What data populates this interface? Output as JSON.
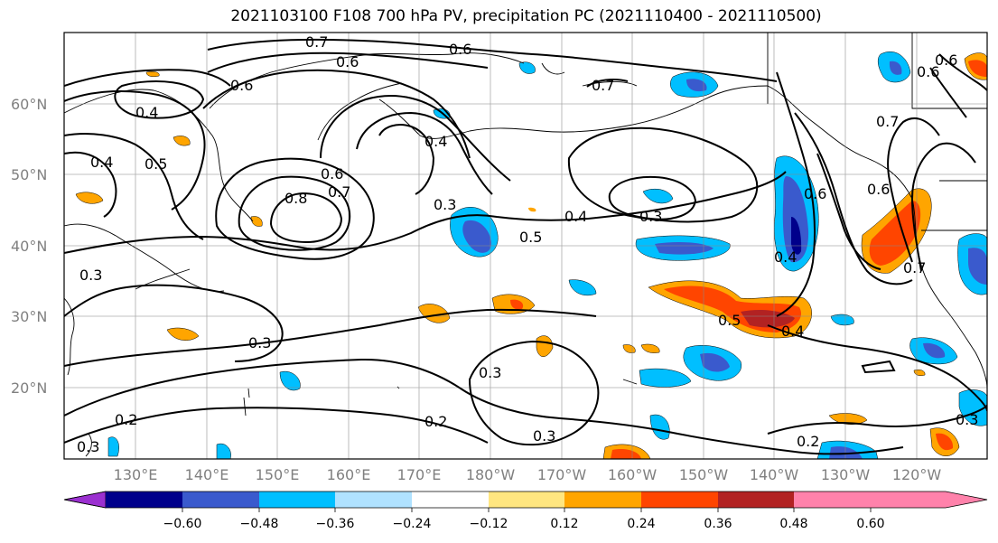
{
  "title": "2021103100 F108 700 hPa PV, precipitation PC (2021110400 - 2021110500)",
  "lat_labels": [
    "60°N",
    "50°N",
    "40°N",
    "30°N",
    "20°N"
  ],
  "lon_labels": [
    "130°E",
    "140°E",
    "150°E",
    "160°E",
    "170°E",
    "180°W",
    "170°W",
    "160°W",
    "150°W",
    "140°W",
    "130°W",
    "120°W"
  ],
  "colorbar": {
    "ticks": [
      "−0.60",
      "−0.48",
      "−0.36",
      "−0.24",
      "−0.12",
      "0.12",
      "0.24",
      "0.36",
      "0.48",
      "0.60"
    ],
    "colors": [
      "#9b30d0",
      "#00008b",
      "#3a5acd",
      "#00bfff",
      "#b0e2ff",
      "#ffffff",
      "#ffe680",
      "#ffa500",
      "#ff4500",
      "#b22222",
      "#ff82ab"
    ]
  },
  "contour_labels": [
    "0.7",
    "0.6",
    "0.6",
    "0.4",
    "0.6",
    "0.4",
    "0.5",
    "0.3",
    "0.8",
    "0.7",
    "0.6",
    "0.3",
    "0.4",
    "0.3",
    "0.5",
    "0.3",
    "0.4",
    "0.3",
    "0.3",
    "0.2",
    "0.2",
    "0.3",
    "0.5",
    "0.4",
    "0.2",
    "0.7",
    "0.6",
    "0.7",
    "0.6",
    "0.4",
    "0.6",
    "0.7",
    "0.6",
    "0.3"
  ]
}
